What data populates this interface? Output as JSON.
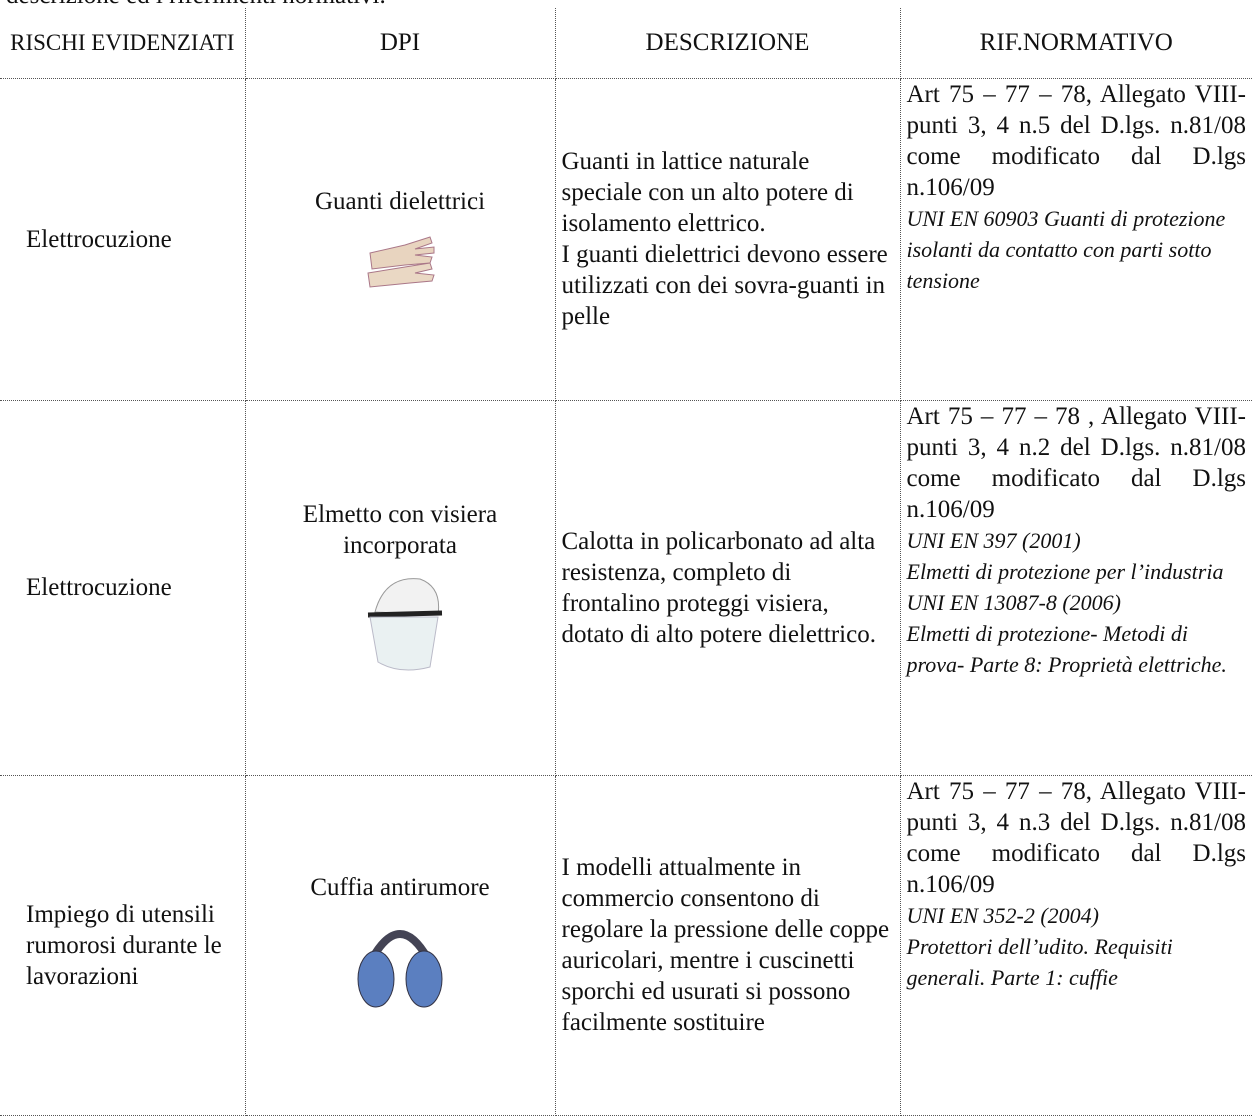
{
  "intro": "descrizione ed i riferimenti normativi.",
  "table": {
    "header": [
      "RISCHI EVIDENZIATI",
      "DPI",
      "DESCRIZIONE",
      "RIF.NORMATIVO"
    ],
    "rows": [
      {
        "risk": "Elettrocuzione",
        "dpi": "Guanti dielettrici",
        "description": [
          "Guanti in lattice naturale speciale con un alto potere di isolamento elettrico.",
          "I guanti dielettrici devono essere utilizzati con dei sovra-guanti in pelle"
        ],
        "reference": "Art 75 – 77 – 78, Allegato VIII-punti 3, 4 n.5 del D.lgs. n.81/08 come modificato dal D.lgs n.106/09",
        "standards": [
          "UNI EN 60903 Guanti di protezione isolanti da contatto con parti sotto tensione"
        ]
      },
      {
        "risk": "Elettrocuzione",
        "dpi": "Elmetto con visiera incorporata",
        "description": [
          "Calotta in policarbonato ad alta resistenza, completo di frontalino proteggi visiera, dotato di alto potere dielettrico."
        ],
        "reference": "Art 75 – 77 – 78 , Allegato VIII-punti 3, 4 n.2 del D.lgs. n.81/08 come modificato dal D.lgs n.106/09",
        "standards": [
          "UNI EN 397 (2001)",
          "Elmetti di protezione per l’industria",
          "UNI EN 13087-8 (2006)",
          "Elmetti di protezione- Metodi di prova- Parte 8: Proprietà elettriche."
        ]
      },
      {
        "risk": "Impiego di utensili rumorosi durante le lavorazioni",
        "dpi": "Cuffia antirumore",
        "description": [
          "I modelli attualmente in commercio consentono di regolare la pressione delle coppe auricolari, mentre i cuscinetti sporchi ed usurati si possono facilmente sostituire"
        ],
        "reference": "Art 75 – 77 – 78, Allegato VIII-punti 3, 4 n.3 del D.lgs. n.81/08 come modificato dal D.lgs n.106/09",
        "standards": [
          "UNI EN 352-2 (2004)",
          "Protettori dell’udito. Requisiti generali. Parte 1: cuffie"
        ]
      }
    ]
  }
}
